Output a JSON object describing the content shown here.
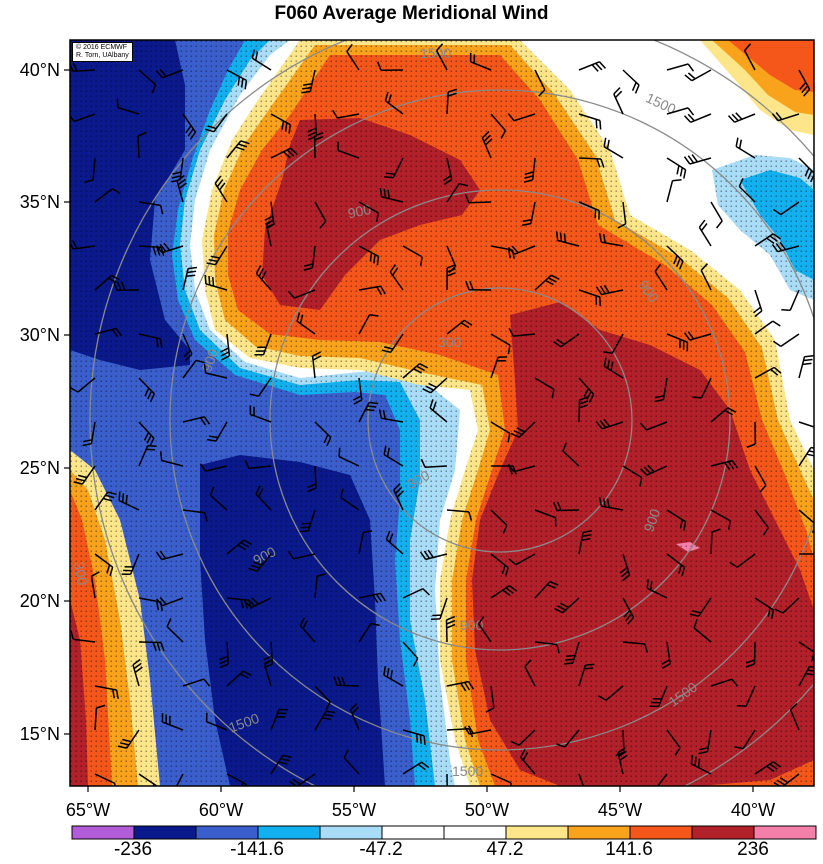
{
  "title": "F060 Average Meridional Wind",
  "credit": [
    "© 2016 ECMWF",
    "R. Torn, UAlbany"
  ],
  "y_axis_labels": [
    "40°N",
    "35°N",
    "30°N",
    "25°N",
    "20°N",
    "15°N"
  ],
  "x_axis_labels": [
    "65°W",
    "60°W",
    "55°W",
    "50°W",
    "45°W",
    "40°W"
  ],
  "colorbar": {
    "labels": [
      "-236",
      "-141.6",
      "-47.2",
      "47.2",
      "141.6",
      "236"
    ],
    "colors": [
      "#b35cd9",
      "#0a1a8c",
      "#3a5fcd",
      "#13b0f0",
      "#a8dcf7",
      "#ffffff",
      "#ffffff",
      "#fde68a",
      "#f9a21b",
      "#f5561a",
      "#b2202a",
      "#f47fa8"
    ]
  },
  "contour_labels": [
    "1500",
    "1500",
    "900",
    "900",
    "900",
    "300",
    "300",
    "900",
    "1500",
    "1500",
    "900",
    "900",
    "1500",
    "300"
  ],
  "field_colors": {
    "dark_blue": "#0a1a8c",
    "mid_blue": "#3a5fcd",
    "bright_blue": "#13b0f0",
    "light_blue": "#a8dcf7",
    "light_yellow": "#fde68a",
    "orange": "#f9a21b",
    "red_orange": "#f5561a",
    "dark_red": "#b2202a",
    "pink": "#f47fa8",
    "purple": "#b35cd9",
    "range_ring": "#8a8a8a"
  }
}
